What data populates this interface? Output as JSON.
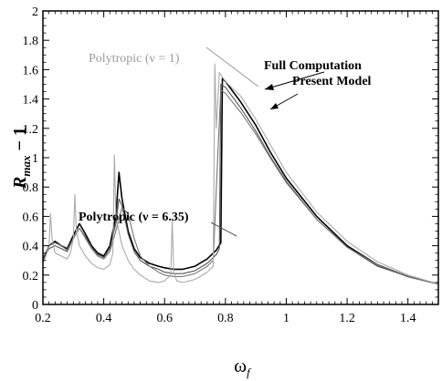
{
  "chart_data": {
    "type": "line",
    "title": "",
    "xlabel": "ω",
    "xlabel_sub": "f",
    "ylabel_main": "R",
    "ylabel_sub": "max",
    "ylabel_tail": " − 1",
    "xlim": [
      0.2,
      1.5
    ],
    "ylim": [
      0,
      2
    ],
    "x_ticks": [
      0.2,
      0.4,
      0.6,
      0.8,
      1,
      1.2,
      1.4
    ],
    "x_tick_labels": [
      "0.2",
      "0.4",
      "0.6",
      "0.8",
      "1",
      "1.2",
      "1.4"
    ],
    "y_ticks": [
      0,
      0.2,
      0.4,
      0.6,
      0.8,
      1,
      1.2,
      1.4,
      1.6,
      1.8,
      2
    ],
    "y_tick_labels": [
      "0",
      "0.2",
      "0.4",
      "0.6",
      "0.8",
      "1",
      "1.2",
      "1.4",
      "1.6",
      "1.8",
      "2"
    ],
    "grid": false,
    "annotations": [
      {
        "text": "Polytropic (ν = 1)",
        "style": "faint"
      },
      {
        "text": "Full Computation",
        "style": "bold"
      },
      {
        "text": "Present Model",
        "style": "bold"
      },
      {
        "text": "Polytropic (ν = 6.35)",
        "style": "bold"
      }
    ],
    "series": [
      {
        "color": "#000000",
        "x": [
          0.2,
          0.22,
          0.24,
          0.26,
          0.28,
          0.3,
          0.32,
          0.34,
          0.36,
          0.38,
          0.4,
          0.42,
          0.44,
          0.445,
          0.45,
          0.46,
          0.48,
          0.5,
          0.52,
          0.55,
          0.58,
          0.6,
          0.63,
          0.66,
          0.7,
          0.74,
          0.77,
          0.785,
          0.79,
          0.8,
          0.85,
          0.9,
          0.95,
          1.0,
          1.1,
          1.2,
          1.3,
          1.4,
          1.5
        ],
        "y": [
          0.3,
          0.4,
          0.43,
          0.4,
          0.38,
          0.47,
          0.55,
          0.48,
          0.4,
          0.35,
          0.33,
          0.4,
          0.6,
          0.75,
          0.9,
          0.72,
          0.5,
          0.38,
          0.32,
          0.28,
          0.26,
          0.25,
          0.24,
          0.24,
          0.26,
          0.31,
          0.37,
          0.42,
          1.54,
          1.52,
          1.38,
          1.22,
          1.03,
          0.86,
          0.6,
          0.4,
          0.27,
          0.19,
          0.14
        ]
      },
      {
        "color": "#555555",
        "x": [
          0.2,
          0.22,
          0.24,
          0.26,
          0.28,
          0.3,
          0.32,
          0.34,
          0.36,
          0.38,
          0.4,
          0.42,
          0.44,
          0.45,
          0.46,
          0.48,
          0.5,
          0.52,
          0.55,
          0.58,
          0.6,
          0.63,
          0.66,
          0.7,
          0.74,
          0.77,
          0.78,
          0.785,
          0.8,
          0.85,
          0.9,
          0.95,
          1.0,
          1.1,
          1.2,
          1.3,
          1.4,
          1.5
        ],
        "y": [
          0.3,
          0.38,
          0.4,
          0.38,
          0.36,
          0.45,
          0.52,
          0.46,
          0.39,
          0.34,
          0.32,
          0.38,
          0.55,
          0.72,
          0.67,
          0.48,
          0.36,
          0.3,
          0.26,
          0.24,
          0.22,
          0.21,
          0.21,
          0.23,
          0.28,
          0.34,
          0.38,
          1.5,
          1.48,
          1.34,
          1.18,
          1.0,
          0.84,
          0.58,
          0.39,
          0.26,
          0.19,
          0.14
        ]
      },
      {
        "color": "#777777",
        "x": [
          0.2,
          0.22,
          0.24,
          0.26,
          0.28,
          0.3,
          0.32,
          0.34,
          0.36,
          0.38,
          0.4,
          0.42,
          0.44,
          0.46,
          0.48,
          0.5,
          0.52,
          0.55,
          0.58,
          0.6,
          0.63,
          0.66,
          0.7,
          0.74,
          0.76,
          0.775,
          0.785,
          0.8,
          0.85,
          0.9,
          0.95,
          1.0,
          1.1,
          1.2,
          1.3,
          1.4,
          1.5
        ],
        "y": [
          0.32,
          0.4,
          0.42,
          0.4,
          0.37,
          0.45,
          0.52,
          0.45,
          0.38,
          0.33,
          0.31,
          0.36,
          0.5,
          0.66,
          0.62,
          0.45,
          0.33,
          0.26,
          0.22,
          0.2,
          0.19,
          0.19,
          0.21,
          0.26,
          0.3,
          1.02,
          1.46,
          1.44,
          1.31,
          1.16,
          0.99,
          0.83,
          0.58,
          0.39,
          0.27,
          0.19,
          0.14
        ]
      },
      {
        "color": "#aaaaaa",
        "x": [
          0.2,
          0.21,
          0.22,
          0.225,
          0.23,
          0.24,
          0.26,
          0.28,
          0.29,
          0.3,
          0.305,
          0.31,
          0.32,
          0.34,
          0.36,
          0.38,
          0.4,
          0.42,
          0.43,
          0.435,
          0.44,
          0.46,
          0.48,
          0.5,
          0.52,
          0.55,
          0.58,
          0.6,
          0.62,
          0.625,
          0.63,
          0.64,
          0.66,
          0.7,
          0.74,
          0.76,
          0.765,
          0.77,
          0.78,
          0.8,
          0.85,
          0.9,
          0.95,
          1.0,
          1.1,
          1.2,
          1.3,
          1.4,
          1.5
        ],
        "y": [
          0.28,
          0.33,
          0.4,
          0.62,
          0.45,
          0.35,
          0.33,
          0.31,
          0.35,
          0.45,
          0.75,
          0.5,
          0.4,
          0.33,
          0.28,
          0.25,
          0.24,
          0.27,
          0.35,
          1.02,
          0.6,
          0.4,
          0.3,
          0.24,
          0.2,
          0.16,
          0.15,
          0.16,
          0.2,
          0.58,
          0.22,
          0.16,
          0.15,
          0.17,
          0.22,
          0.26,
          1.64,
          1.2,
          1.58,
          1.52,
          1.42,
          1.26,
          1.08,
          0.9,
          0.63,
          0.43,
          0.29,
          0.2,
          0.14
        ]
      }
    ]
  }
}
